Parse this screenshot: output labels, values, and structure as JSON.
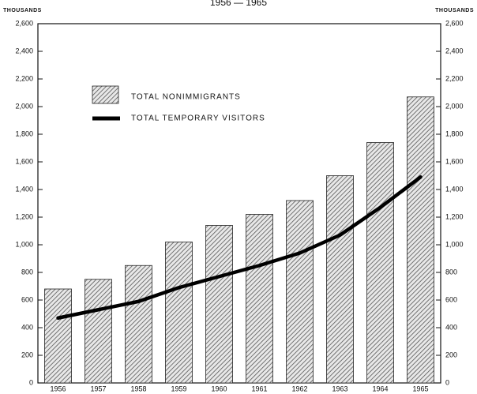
{
  "chart_data": {
    "type": "bar_line",
    "title": "1956 — 1965",
    "y_label": "THOUSANDS",
    "y2_label": "THOUSANDS",
    "categories": [
      "1956",
      "1957",
      "1958",
      "1959",
      "1960",
      "1961",
      "1962",
      "1963",
      "1964",
      "1965"
    ],
    "series": [
      {
        "name": "TOTAL NONIMMIGRANTS",
        "type": "bar",
        "color": "#555555",
        "values": [
          680,
          750,
          850,
          1020,
          1140,
          1220,
          1320,
          1500,
          1740,
          2070
        ]
      },
      {
        "name": "TOTAL TEMPORARY VISITORS",
        "type": "line",
        "color": "#000000",
        "values": [
          470,
          530,
          590,
          690,
          770,
          850,
          940,
          1070,
          1270,
          1490
        ]
      }
    ],
    "ylim": [
      0,
      2600
    ],
    "yticks": [
      0,
      200,
      400,
      600,
      800,
      {
        "value": 1000,
        "label": "1,000"
      },
      {
        "value": 1200,
        "label": "1,200"
      },
      {
        "value": 1400,
        "label": "1,400"
      },
      {
        "value": 1600,
        "label": "1,600"
      },
      {
        "value": 1800,
        "label": "1,800"
      },
      {
        "value": 2000,
        "label": "2,000"
      },
      {
        "value": 2200,
        "label": "2,200"
      },
      {
        "value": 2400,
        "label": "2,400"
      },
      {
        "value": 2600,
        "label": "2,600"
      }
    ]
  }
}
